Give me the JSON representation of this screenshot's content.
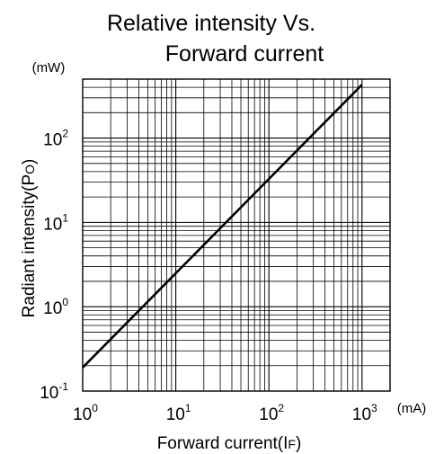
{
  "chart_data": {
    "type": "line",
    "title_line1": "Relative intensity Vs.",
    "title_line2": "Forward current",
    "xlabel": {
      "prefix": "Forward current(I",
      "sub": "F",
      "suffix": ")"
    },
    "ylabel": {
      "prefix": "Radiant intensity(P",
      "sub": "O",
      "suffix": ")"
    },
    "x_unit": "(mA)",
    "y_unit": "(mW)",
    "x_scale": "log",
    "y_scale": "log",
    "xlim": [
      1,
      2000
    ],
    "ylim": [
      0.1,
      500
    ],
    "x_ticks": [
      {
        "value": 1,
        "base": "10",
        "exp": "0"
      },
      {
        "value": 10,
        "base": "10",
        "exp": "1"
      },
      {
        "value": 100,
        "base": "10",
        "exp": "2"
      },
      {
        "value": 1000,
        "base": "10",
        "exp": "3"
      }
    ],
    "y_ticks": [
      {
        "value": 0.1,
        "base": "10",
        "exp": "-1"
      },
      {
        "value": 1,
        "base": "10",
        "exp": "0"
      },
      {
        "value": 10,
        "base": "10",
        "exp": "1"
      },
      {
        "value": 100,
        "base": "10",
        "exp": "2"
      }
    ],
    "grid": true,
    "series": [
      {
        "x": [
          1,
          1000
        ],
        "y": [
          0.19,
          430
        ],
        "color": "#000000"
      }
    ]
  }
}
